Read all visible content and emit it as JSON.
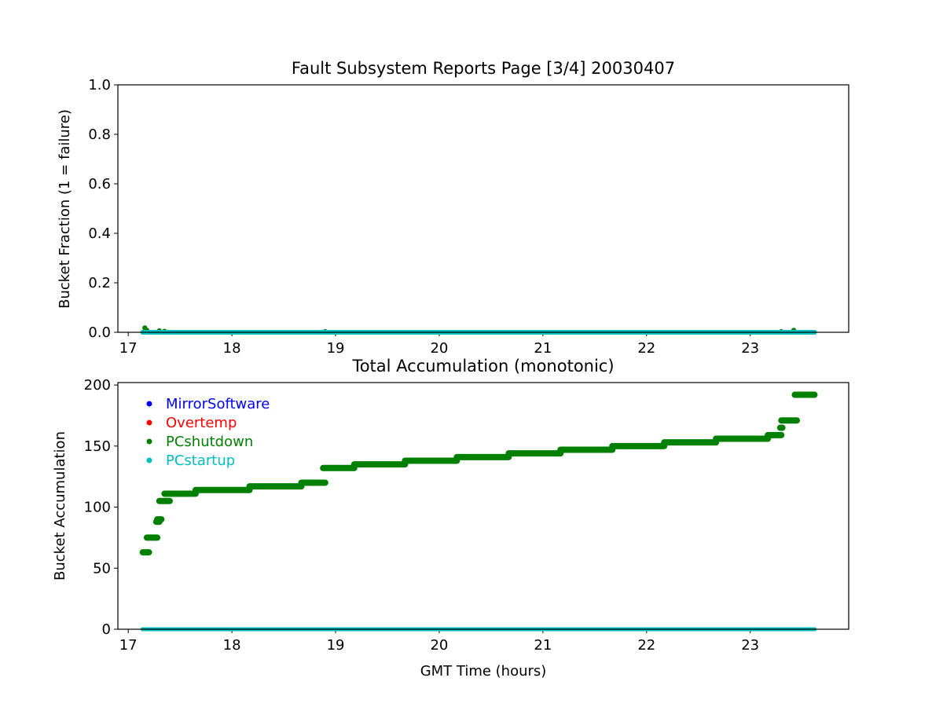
{
  "chart_data": [
    {
      "type": "scatter",
      "title": "Fault Subsystem Reports Page [3/4] 20030407",
      "xlabel": "",
      "ylabel": "Bucket Fraction (1 = failure)",
      "xlim": [
        16.9,
        23.95
      ],
      "ylim": [
        0.0,
        1.0
      ],
      "xticks": [
        17,
        18,
        19,
        20,
        21,
        22,
        23
      ],
      "yticks": [
        "0.0",
        "0.2",
        "0.4",
        "0.6",
        "0.8",
        "1.0"
      ],
      "grid": false,
      "series": [
        {
          "color": "#008000",
          "points": [
            [
              17.16,
              0.018
            ],
            [
              17.18,
              0.008
            ],
            [
              17.3,
              0.006
            ],
            [
              17.35,
              0.004
            ],
            [
              18.9,
              0.003
            ],
            [
              23.3,
              0.003
            ],
            [
              23.42,
              0.008
            ]
          ],
          "line": [
            17.14,
            23.62,
            0.0
          ]
        },
        {
          "color": "#00bfbf",
          "points": [],
          "line": [
            17.14,
            23.62,
            0.0
          ]
        }
      ]
    },
    {
      "type": "scatter",
      "title": "Total Accumulation (monotonic)",
      "xlabel": "GMT Time (hours)",
      "ylabel": "Bucket Accumulation",
      "xlim": [
        16.9,
        23.95
      ],
      "ylim": [
        0,
        202
      ],
      "xticks": [
        17,
        18,
        19,
        20,
        21,
        22,
        23
      ],
      "yticks": [
        "0",
        "50",
        "100",
        "150",
        "200"
      ],
      "grid": false,
      "legend": {
        "placement": "upper-left",
        "entries": [
          {
            "name": "MirrorSoftware",
            "color": "#0000ff"
          },
          {
            "name": "Overtemp",
            "color": "#ff0000"
          },
          {
            "name": "PCshutdown",
            "color": "#008000"
          },
          {
            "name": "PCstartup",
            "color": "#00bfbf"
          }
        ]
      },
      "steps": [
        [
          17.14,
          17.2,
          63
        ],
        [
          17.18,
          17.28,
          75
        ],
        [
          17.27,
          17.3,
          88
        ],
        [
          17.28,
          17.32,
          90
        ],
        [
          17.3,
          17.4,
          105
        ],
        [
          17.35,
          17.65,
          111
        ],
        [
          17.65,
          18.17,
          114
        ],
        [
          18.17,
          18.67,
          117
        ],
        [
          18.67,
          18.9,
          120
        ],
        [
          18.88,
          19.18,
          132
        ],
        [
          19.18,
          19.67,
          135
        ],
        [
          19.67,
          20.17,
          138
        ],
        [
          20.17,
          20.67,
          141
        ],
        [
          20.67,
          21.17,
          144
        ],
        [
          21.17,
          21.67,
          147
        ],
        [
          21.67,
          22.17,
          150
        ],
        [
          22.17,
          22.67,
          153
        ],
        [
          22.67,
          23.17,
          156
        ],
        [
          23.17,
          23.3,
          159
        ],
        [
          23.29,
          23.31,
          165
        ],
        [
          23.3,
          23.45,
          171
        ],
        [
          23.43,
          23.62,
          192
        ]
      ],
      "zero_lines": [
        {
          "color": "#0000ff",
          "x": [
            17.14,
            23.62
          ]
        },
        {
          "color": "#ff0000",
          "x": [
            17.14,
            23.62
          ]
        },
        {
          "color": "#008000",
          "x": [
            17.14,
            23.62
          ]
        },
        {
          "color": "#00bfbf",
          "x": [
            17.14,
            23.62
          ]
        }
      ]
    }
  ]
}
